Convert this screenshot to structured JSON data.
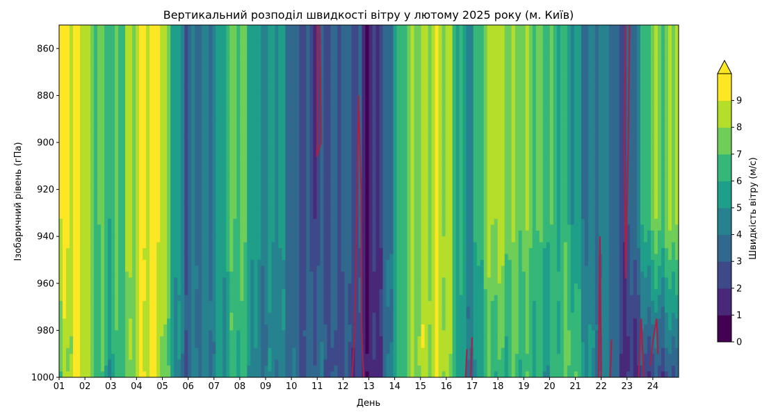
{
  "chart_data": {
    "type": "heatmap",
    "title": "Вертикальний розподіл швидкості вітру у лютому 2025 року (м. Київ)",
    "xlabel": "День",
    "ylabel": "Ізобаричний рівень (гПа)",
    "x_tick_labels": [
      "01",
      "02",
      "03",
      "04",
      "05",
      "06",
      "07",
      "08",
      "09",
      "10",
      "11",
      "12",
      "13",
      "14",
      "15",
      "16",
      "17",
      "18",
      "19",
      "20",
      "21",
      "22",
      "23",
      "24"
    ],
    "xlim": [
      1,
      25
    ],
    "y_ticks": [
      860,
      880,
      900,
      920,
      940,
      960,
      980,
      1000
    ],
    "ylim": [
      1000,
      850
    ],
    "y_inverted": true,
    "colorbar": {
      "label": "Швидкість вітру (м/с)",
      "ticks": [
        0,
        1,
        2,
        3,
        4,
        5,
        6,
        7,
        8,
        9
      ],
      "levels": [
        0,
        1,
        2,
        3,
        4,
        5,
        6,
        7,
        8,
        9,
        10
      ],
      "extend": "max",
      "colors": [
        "#440154",
        "#482878",
        "#3e4989",
        "#31688e",
        "#26828e",
        "#1f9e89",
        "#35b779",
        "#6ece58",
        "#b5de2b",
        "#fde725"
      ]
    },
    "contour_line": {
      "value": 1,
      "color": "#a3244a"
    },
    "surface_speed_by_day": [
      7,
      9,
      5,
      9,
      8,
      3,
      5,
      6,
      4,
      4,
      3,
      3,
      1,
      5,
      9,
      8,
      4,
      7,
      6,
      6,
      7,
      4,
      2,
      2,
      4
    ],
    "upper_speed_by_day": [
      9,
      9,
      6,
      9,
      9,
      3,
      5,
      7,
      5,
      4,
      2,
      4,
      1,
      5,
      9,
      8,
      5,
      9,
      7,
      7,
      5,
      4,
      3,
      7,
      9
    ]
  }
}
